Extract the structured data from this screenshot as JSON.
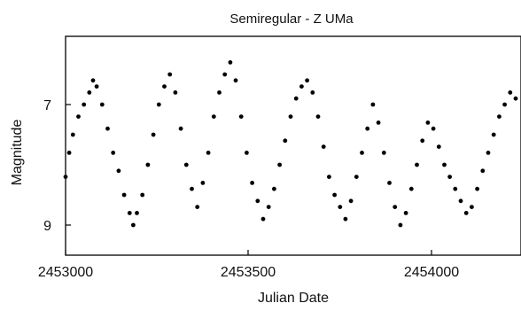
{
  "chart_data": {
    "type": "scatter",
    "title": "Semiregular - Z UMa",
    "xlabel": "Julian Date",
    "ylabel": "Magnitude",
    "xlim": [
      2452980,
      2454280
    ],
    "ylim": [
      9.5,
      5.9
    ],
    "y_inverted": true,
    "x_ticks": [
      2453000,
      2453500,
      2454000
    ],
    "y_ticks": [
      7,
      9
    ],
    "grid": false,
    "series": [
      {
        "marker_color": "#000000",
        "points": [
          [
            2452990,
            8.7
          ],
          [
            2453000,
            8.2
          ],
          [
            2453010,
            7.8
          ],
          [
            2453020,
            7.5
          ],
          [
            2453035,
            7.2
          ],
          [
            2453050,
            7.0
          ],
          [
            2453065,
            6.8
          ],
          [
            2453075,
            6.6
          ],
          [
            2453085,
            6.7
          ],
          [
            2453100,
            7.0
          ],
          [
            2453115,
            7.4
          ],
          [
            2453130,
            7.8
          ],
          [
            2453145,
            8.1
          ],
          [
            2453160,
            8.5
          ],
          [
            2453175,
            8.8
          ],
          [
            2453185,
            9.0
          ],
          [
            2453195,
            8.8
          ],
          [
            2453210,
            8.5
          ],
          [
            2453225,
            8.0
          ],
          [
            2453240,
            7.5
          ],
          [
            2453255,
            7.0
          ],
          [
            2453270,
            6.7
          ],
          [
            2453285,
            6.5
          ],
          [
            2453300,
            6.8
          ],
          [
            2453315,
            7.4
          ],
          [
            2453330,
            8.0
          ],
          [
            2453345,
            8.4
          ],
          [
            2453360,
            8.7
          ],
          [
            2453375,
            8.3
          ],
          [
            2453390,
            7.8
          ],
          [
            2453405,
            7.2
          ],
          [
            2453420,
            6.8
          ],
          [
            2453435,
            6.5
          ],
          [
            2453450,
            6.3
          ],
          [
            2453465,
            6.6
          ],
          [
            2453480,
            7.2
          ],
          [
            2453495,
            7.8
          ],
          [
            2453510,
            8.3
          ],
          [
            2453525,
            8.6
          ],
          [
            2453540,
            8.9
          ],
          [
            2453555,
            8.7
          ],
          [
            2453570,
            8.4
          ],
          [
            2453585,
            8.0
          ],
          [
            2453600,
            7.6
          ],
          [
            2453615,
            7.2
          ],
          [
            2453630,
            6.9
          ],
          [
            2453645,
            6.7
          ],
          [
            2453660,
            6.6
          ],
          [
            2453675,
            6.8
          ],
          [
            2453690,
            7.2
          ],
          [
            2453705,
            7.7
          ],
          [
            2453720,
            8.2
          ],
          [
            2453735,
            8.5
          ],
          [
            2453750,
            8.7
          ],
          [
            2453765,
            8.9
          ],
          [
            2453780,
            8.6
          ],
          [
            2453795,
            8.2
          ],
          [
            2453810,
            7.8
          ],
          [
            2453825,
            7.4
          ],
          [
            2453840,
            7.0
          ],
          [
            2453855,
            7.3
          ],
          [
            2453870,
            7.8
          ],
          [
            2453885,
            8.3
          ],
          [
            2453900,
            8.7
          ],
          [
            2453915,
            9.0
          ],
          [
            2453930,
            8.8
          ],
          [
            2453945,
            8.4
          ],
          [
            2453960,
            8.0
          ],
          [
            2453975,
            7.6
          ],
          [
            2453990,
            7.3
          ],
          [
            2454005,
            7.4
          ],
          [
            2454020,
            7.7
          ],
          [
            2454035,
            8.0
          ],
          [
            2454050,
            8.2
          ],
          [
            2454065,
            8.4
          ],
          [
            2454080,
            8.6
          ],
          [
            2454095,
            8.8
          ],
          [
            2454110,
            8.7
          ],
          [
            2454125,
            8.4
          ],
          [
            2454140,
            8.1
          ],
          [
            2454155,
            7.8
          ],
          [
            2454170,
            7.5
          ],
          [
            2454185,
            7.2
          ],
          [
            2454200,
            7.0
          ],
          [
            2454215,
            6.8
          ],
          [
            2454230,
            6.9
          ],
          [
            2454245,
            7.2
          ],
          [
            2454260,
            7.6
          ],
          [
            2454275,
            8.0
          ]
        ]
      }
    ]
  }
}
